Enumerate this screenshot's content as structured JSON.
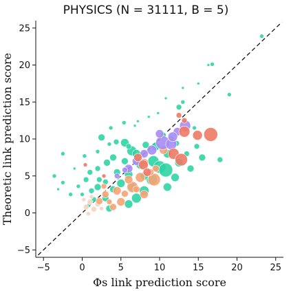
{
  "chart_data": {
    "type": "scatter",
    "title": "PHYSICS (N = 31111, B = 5)",
    "xlabel": "Φs link prediction score",
    "ylabel": "Theoretic link prediction score",
    "xlim": [
      -6,
      26
    ],
    "ylim": [
      -6,
      26
    ],
    "xticks": [
      -5,
      0,
      5,
      10,
      15,
      20,
      25
    ],
    "yticks": [
      -5,
      0,
      5,
      10,
      15,
      20,
      25
    ],
    "reference_line": "y = x",
    "grid": false,
    "legend": "none",
    "colors": {
      "teal": "#2fd4a4",
      "orange": "#f7a374",
      "purple": "#a78cf4",
      "red": "#ee7a66",
      "peach": "#f6d3bf"
    },
    "series": [
      {
        "color": "teal",
        "points": [
          [
            23.2,
            23.9,
            3
          ],
          [
            16.8,
            20.1,
            3
          ],
          [
            16.3,
            20.0,
            2
          ],
          [
            15.0,
            17.5,
            2
          ],
          [
            19.0,
            16.0,
            3
          ],
          [
            13.0,
            16.9,
            2
          ],
          [
            10.8,
            15.5,
            2
          ],
          [
            13.0,
            15.0,
            3
          ],
          [
            12.5,
            14.3,
            4
          ],
          [
            8.6,
            13.0,
            2
          ],
          [
            9.8,
            13.5,
            2
          ],
          [
            7.2,
            12.4,
            2
          ],
          [
            5.4,
            12.2,
            3
          ],
          [
            6.8,
            11.8,
            2
          ],
          [
            3.7,
            11.5,
            3
          ],
          [
            -2.5,
            8.0,
            3
          ],
          [
            -3.6,
            5.0,
            3
          ],
          [
            -2.5,
            4.1,
            3
          ],
          [
            -3.1,
            3.2,
            2
          ],
          [
            -1.0,
            6.0,
            2
          ],
          [
            0.3,
            7.7,
            3
          ],
          [
            2.5,
            10.2,
            5
          ],
          [
            3.5,
            9.3,
            3
          ],
          [
            2.0,
            8.3,
            3
          ],
          [
            4.4,
            9.6,
            4
          ],
          [
            5.5,
            9.5,
            6
          ],
          [
            1.0,
            5.5,
            4
          ],
          [
            2.0,
            6.0,
            4
          ],
          [
            3.2,
            6.8,
            5
          ],
          [
            4.0,
            7.5,
            5
          ],
          [
            6.4,
            8.4,
            7
          ],
          [
            8.2,
            9.2,
            5
          ],
          [
            9.2,
            7.0,
            8
          ],
          [
            10.0,
            6.2,
            9
          ],
          [
            9.0,
            4.5,
            8
          ],
          [
            10.8,
            5.8,
            10
          ],
          [
            12.5,
            6.8,
            6
          ],
          [
            11.0,
            3.5,
            6
          ],
          [
            12.0,
            4.8,
            6
          ],
          [
            8.0,
            3.0,
            7
          ],
          [
            7.0,
            2.0,
            7
          ],
          [
            6.0,
            1.2,
            6
          ],
          [
            14.0,
            6.0,
            5
          ],
          [
            15.5,
            7.5,
            5
          ],
          [
            17.8,
            7.2,
            4
          ],
          [
            6.0,
            5.2,
            6
          ],
          [
            5.0,
            4.0,
            6
          ],
          [
            4.0,
            3.2,
            5
          ],
          [
            3.0,
            2.0,
            5
          ],
          [
            2.0,
            3.5,
            5
          ],
          [
            1.5,
            1.8,
            4
          ],
          [
            0.8,
            1.0,
            3
          ],
          [
            3.5,
            0.6,
            5
          ],
          [
            7.5,
            6.5,
            6
          ],
          [
            8.0,
            5.0,
            6
          ],
          [
            9.5,
            9.0,
            6
          ],
          [
            11.0,
            8.0,
            6
          ],
          [
            12.2,
            9.4,
            4
          ],
          [
            13.5,
            8.0,
            4
          ],
          [
            14.8,
            9.0,
            4
          ],
          [
            13.2,
            11.2,
            3
          ],
          [
            14.5,
            11.5,
            3
          ],
          [
            5.5,
            7.0,
            5
          ],
          [
            4.5,
            5.5,
            5
          ],
          [
            6.5,
            3.5,
            6
          ],
          [
            1.2,
            3.0,
            4
          ],
          [
            0.0,
            2.5,
            3
          ],
          [
            -0.5,
            3.6,
            3
          ],
          [
            -1.5,
            2.5,
            3
          ],
          [
            0.5,
            4.5,
            4
          ],
          [
            7.0,
            8.0,
            6
          ],
          [
            6.0,
            9.0,
            4
          ],
          [
            10.5,
            10.5,
            4
          ],
          [
            11.5,
            10.0,
            4
          ],
          [
            2.2,
            4.5,
            4
          ],
          [
            3.0,
            4.2,
            4
          ]
        ]
      },
      {
        "color": "peach",
        "points": [
          [
            0.5,
            0.8,
            4
          ],
          [
            1.0,
            1.5,
            4
          ],
          [
            1.5,
            0.5,
            4
          ],
          [
            2.0,
            1.2,
            4
          ],
          [
            0.2,
            1.8,
            3
          ],
          [
            1.2,
            2.2,
            3
          ],
          [
            2.5,
            0.6,
            3
          ],
          [
            0.8,
            -0.1,
            3
          ]
        ]
      },
      {
        "color": "orange",
        "points": [
          [
            9.3,
            4.5,
            9
          ],
          [
            6.5,
            3.5,
            8
          ],
          [
            7.5,
            4.8,
            7
          ],
          [
            8.0,
            2.5,
            6
          ],
          [
            5.0,
            1.5,
            6
          ],
          [
            4.5,
            3.0,
            6
          ],
          [
            3.0,
            2.5,
            5
          ],
          [
            2.2,
            1.6,
            5
          ],
          [
            6.0,
            4.5,
            6
          ],
          [
            8.0,
            6.8,
            6
          ],
          [
            9.5,
            6.0,
            5
          ],
          [
            10.5,
            8.5,
            6
          ],
          [
            4.0,
            0.8,
            5
          ],
          [
            5.5,
            2.6,
            5
          ],
          [
            7.0,
            3.2,
            5
          ],
          [
            3.5,
            1.5,
            4
          ],
          [
            2.8,
            3.6,
            4
          ],
          [
            8.8,
            5.5,
            5
          ]
        ]
      },
      {
        "color": "purple",
        "points": [
          [
            10.4,
            9.5,
            10
          ],
          [
            11.5,
            9.3,
            8
          ],
          [
            9.0,
            8.5,
            7
          ],
          [
            8.0,
            8.0,
            6
          ],
          [
            12.3,
            11.0,
            6
          ],
          [
            13.3,
            11.8,
            8
          ],
          [
            11.7,
            10.3,
            7
          ],
          [
            6.0,
            6.0,
            6
          ],
          [
            7.0,
            7.0,
            6
          ],
          [
            10.0,
            10.7,
            6
          ],
          [
            4.5,
            5.0,
            4
          ],
          [
            5.5,
            5.8,
            4
          ]
        ]
      },
      {
        "color": "red",
        "points": [
          [
            16.6,
            10.6,
            10
          ],
          [
            14.9,
            10.5,
            7
          ],
          [
            13.2,
            11.0,
            8
          ],
          [
            11.8,
            8.0,
            8
          ],
          [
            12.8,
            7.2,
            9
          ],
          [
            7.9,
            6.5,
            7
          ],
          [
            8.4,
            5.5,
            6
          ],
          [
            7.2,
            7.5,
            6
          ],
          [
            12.5,
            13.2,
            4
          ],
          [
            13.2,
            12.5,
            4
          ],
          [
            0.4,
            6.5,
            3
          ],
          [
            2.8,
            5.0,
            3
          ]
        ]
      }
    ]
  }
}
